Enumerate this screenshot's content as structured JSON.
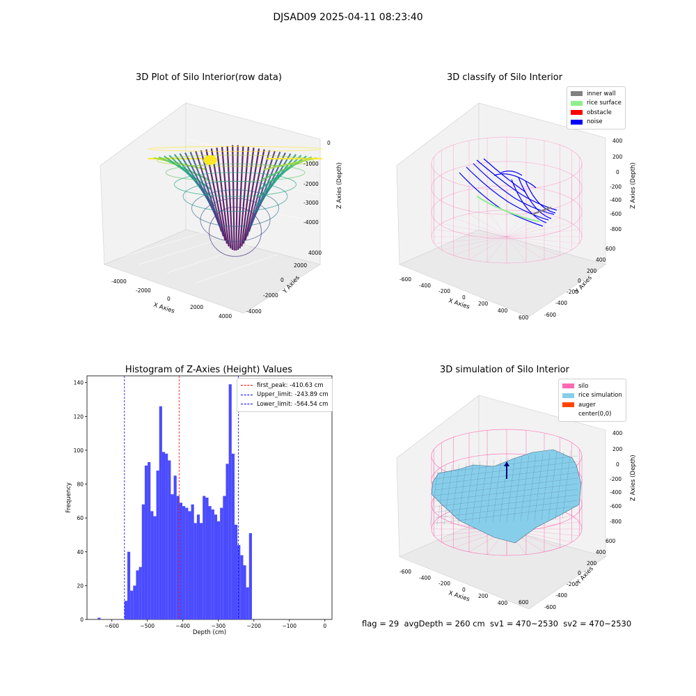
{
  "suptitle": "DJSAD09 2025-04-11 08:23:40",
  "footer": "flag = 29  avgDepth = 260 cm  sv1 = 470~2530  sv2 = 470~2530",
  "colors": {
    "inner_wall": "#808080",
    "rice_surface": "#90ee90",
    "obstacle": "#ff0000",
    "noise": "#0000ff",
    "silo": "#ff69b4",
    "rice_simulation": "#87ceeb",
    "auger": "#ff4500",
    "histogram": "#4b4bff"
  },
  "chart_data": [
    {
      "type": "scatter",
      "title": "3D Plot of Silo Interior(row data)",
      "xlabel": "X Axies",
      "ylabel": "Y Axies",
      "zlabel": "Z Axies (Depth)",
      "x_ticks": [
        "-4000",
        "-2000",
        "0",
        "2000",
        "4000"
      ],
      "y_ticks": [
        "-4000",
        "-2000",
        "0",
        "2000",
        "4000"
      ],
      "z_ticks": [
        "0",
        "-1000",
        "-2000",
        "-3000",
        "-4000"
      ],
      "colormap": "viridis"
    },
    {
      "type": "scatter",
      "title": "3D classify of Silo Interior",
      "xlabel": "X Axies",
      "ylabel": "Y Axies",
      "zlabel": "Z Axies (Depth)",
      "x_ticks": [
        "-600",
        "-400",
        "-200",
        "0",
        "200",
        "400",
        "600"
      ],
      "y_ticks": [
        "600",
        "400",
        "200",
        "0",
        "-200",
        "-400",
        "-600"
      ],
      "z_ticks": [
        "400",
        "200",
        "0",
        "-200",
        "-400",
        "-600",
        "-800"
      ],
      "legend": [
        "inner wall",
        "rice surface",
        "obstacle",
        "noise"
      ],
      "legend_position": "top-right"
    },
    {
      "type": "bar",
      "title": "Histogram of Z-Axies (Height) Values",
      "xlabel": "Depth (cm)",
      "ylabel": "Frequency",
      "xlim": [
        -670,
        20
      ],
      "ylim": [
        0,
        144
      ],
      "x_ticks": [
        "−600",
        "−500",
        "−400",
        "−300",
        "−200",
        "−100",
        "0"
      ],
      "y_ticks": [
        "0",
        "20",
        "40",
        "60",
        "80",
        "100",
        "120",
        "140"
      ],
      "bin_width": 8.16,
      "bins": [
        {
          "x": -640,
          "value": 1
        },
        {
          "x": -564.54,
          "value": 11
        },
        {
          "x": -556.38,
          "value": 40
        },
        {
          "x": -548.22,
          "value": 17
        },
        {
          "x": -540.06,
          "value": 20
        },
        {
          "x": -531.9,
          "value": 29
        },
        {
          "x": -523.74,
          "value": 31
        },
        {
          "x": -515.58,
          "value": 68
        },
        {
          "x": -507.42,
          "value": 91
        },
        {
          "x": -499.26,
          "value": 93
        },
        {
          "x": -491.1,
          "value": 64
        },
        {
          "x": -482.94,
          "value": 61
        },
        {
          "x": -474.78,
          "value": 88
        },
        {
          "x": -466.62,
          "value": 126
        },
        {
          "x": -458.46,
          "value": 99
        },
        {
          "x": -450.3,
          "value": 98
        },
        {
          "x": -442.14,
          "value": 94
        },
        {
          "x": -433.98,
          "value": 74
        },
        {
          "x": -425.82,
          "value": 85
        },
        {
          "x": -417.66,
          "value": 73
        },
        {
          "x": -409.5,
          "value": 69
        },
        {
          "x": -401.34,
          "value": 67
        },
        {
          "x": -393.18,
          "value": 66
        },
        {
          "x": -385.02,
          "value": 64
        },
        {
          "x": -376.86,
          "value": 68
        },
        {
          "x": -368.7,
          "value": 57
        },
        {
          "x": -360.54,
          "value": 62
        },
        {
          "x": -352.38,
          "value": 57
        },
        {
          "x": -344.22,
          "value": 73
        },
        {
          "x": -336.06,
          "value": 72
        },
        {
          "x": -327.9,
          "value": 67
        },
        {
          "x": -319.74,
          "value": 65
        },
        {
          "x": -311.58,
          "value": 62
        },
        {
          "x": -303.42,
          "value": 58
        },
        {
          "x": -295.26,
          "value": 66
        },
        {
          "x": -287.1,
          "value": 73
        },
        {
          "x": -278.94,
          "value": 92
        },
        {
          "x": -270.78,
          "value": 139
        },
        {
          "x": -262.62,
          "value": 98
        },
        {
          "x": -254.46,
          "value": 56
        },
        {
          "x": -246.3,
          "value": 44
        },
        {
          "x": -238.14,
          "value": 38
        },
        {
          "x": -229.98,
          "value": 32
        },
        {
          "x": -221.82,
          "value": 19
        },
        {
          "x": -213.66,
          "value": 51
        }
      ],
      "vlines": [
        {
          "label": "first_peak: -410.63 cm",
          "x": -410.63,
          "color": "#ff0000"
        },
        {
          "label": "Upper_limit: -243.89 cm",
          "x": -243.89,
          "color": "#0000ff"
        },
        {
          "label": "Lower_limit: -564.54 cm",
          "x": -564.54,
          "color": "#0000ff"
        }
      ],
      "legend_position": "top-right"
    },
    {
      "type": "area",
      "title": "3D simulation of Silo Interior",
      "xlabel": "X Axies",
      "ylabel": "Y Axies",
      "zlabel": "Z Axies (Depth)",
      "x_ticks": [
        "-600",
        "-400",
        "-200",
        "0",
        "200",
        "400",
        "600"
      ],
      "y_ticks": [
        "600",
        "400",
        "200",
        "0",
        "-200",
        "-400",
        "-600"
      ],
      "z_ticks": [
        "400",
        "200",
        "0",
        "-200",
        "-400",
        "-600",
        "-800"
      ],
      "legend": [
        "silo",
        "rice simulation",
        "auger",
        "center(0,0)"
      ],
      "legend_position": "top-right"
    }
  ]
}
